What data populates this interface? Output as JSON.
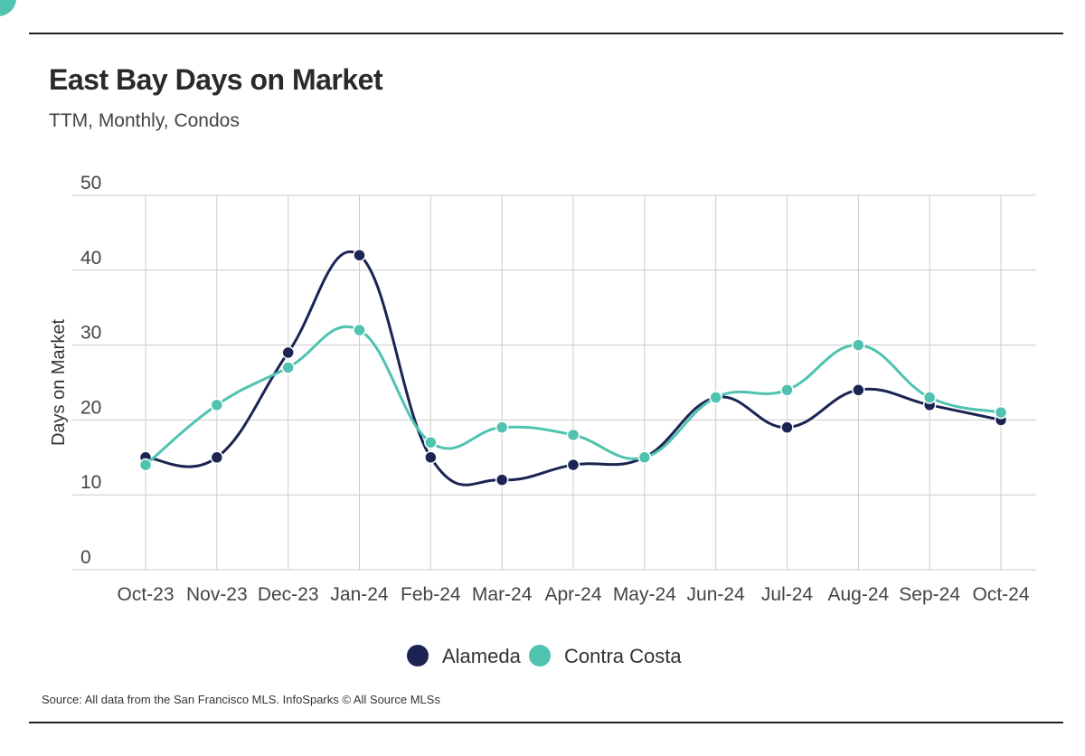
{
  "colors": {
    "alameda": "#1b2453",
    "contra_costa": "#4fc3b0",
    "grid": "#cccccc",
    "rule": "#222222"
  },
  "footer": {
    "source": "Source:  All data from the San Francisco MLS. InfoSparks © All Source MLSs"
  },
  "chart_data": {
    "type": "line",
    "title": "East Bay Days on Market",
    "subtitle": "TTM, Monthly, Condos",
    "xlabel": "",
    "ylabel": "Days on Market",
    "ylim": [
      0,
      50
    ],
    "yticks": [
      0,
      10,
      20,
      30,
      40,
      50
    ],
    "grid": true,
    "legend": "bottom-center",
    "categories": [
      "Oct-23",
      "Nov-23",
      "Dec-23",
      "Jan-24",
      "Feb-24",
      "Mar-24",
      "Apr-24",
      "May-24",
      "Jun-24",
      "Jul-24",
      "Aug-24",
      "Sep-24",
      "Oct-24"
    ],
    "series": [
      {
        "name": "Alameda",
        "color": "#1b2453",
        "values": [
          15,
          15,
          29,
          42,
          15,
          12,
          14,
          15,
          23,
          19,
          24,
          22,
          20
        ]
      },
      {
        "name": "Contra Costa",
        "color": "#4fc3b0",
        "values": [
          14,
          22,
          27,
          32,
          17,
          19,
          18,
          15,
          23,
          24,
          30,
          23,
          21
        ]
      }
    ]
  }
}
